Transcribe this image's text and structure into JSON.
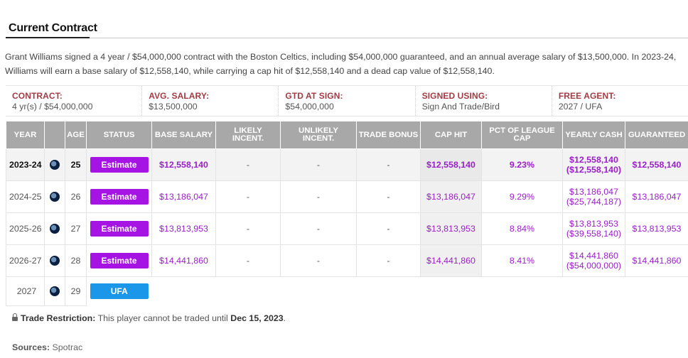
{
  "section": {
    "title": "Current Contract"
  },
  "summary": "Grant Williams signed a 4 year / $54,000,000 contract with the Boston Celtics, including $54,000,000 guaranteed, and an annual average salary of $13,500,000. In 2023-24, Williams will earn a base salary of $12,558,140, while carrying a cap hit of $12,558,140 and a dead cap value of $12,558,140.",
  "info": [
    {
      "label": "CONTRACT:",
      "value": "4 yr(s) / $54,000,000"
    },
    {
      "label": "AVG. SALARY:",
      "value": "$13,500,000"
    },
    {
      "label": "GTD AT SIGN:",
      "value": "$54,000,000"
    },
    {
      "label": "SIGNED USING:",
      "value": "Sign And Trade/Bird"
    },
    {
      "label": "FREE AGENT:",
      "value": "2027 / UFA"
    }
  ],
  "columns": [
    "YEAR",
    "",
    "AGE",
    "STATUS",
    "BASE SALARY",
    "LIKELY INCENT.",
    "UNLIKELY INCENT.",
    "TRADE BONUS",
    "CAP HIT",
    "PCT OF LEAGUE CAP",
    "YEARLY CASH",
    "GUARANTEED"
  ],
  "rows": [
    {
      "year": "2023-24",
      "team_icon": "celtics-logo-icon",
      "age": "25",
      "status": "Estimate",
      "base": "$12,558,140",
      "likely": "-",
      "unlikely": "-",
      "bonus": "-",
      "cap": "$12,558,140",
      "pct": "9.23%",
      "cash": "$12,558,140",
      "cash_cum": "($12,558,140)",
      "gtd": "$12,558,140"
    },
    {
      "year": "2024-25",
      "team_icon": "celtics-logo-icon",
      "age": "26",
      "status": "Estimate",
      "base": "$13,186,047",
      "likely": "-",
      "unlikely": "-",
      "bonus": "-",
      "cap": "$13,186,047",
      "pct": "9.29%",
      "cash": "$13,186,047",
      "cash_cum": "($25,744,187)",
      "gtd": "$13,186,047"
    },
    {
      "year": "2025-26",
      "team_icon": "celtics-logo-icon",
      "age": "27",
      "status": "Estimate",
      "base": "$13,813,953",
      "likely": "-",
      "unlikely": "-",
      "bonus": "-",
      "cap": "$13,813,953",
      "pct": "8.84%",
      "cash": "$13,813,953",
      "cash_cum": "($39,558,140)",
      "gtd": "$13,813,953"
    },
    {
      "year": "2026-27",
      "team_icon": "celtics-logo-icon",
      "age": "28",
      "status": "Estimate",
      "base": "$14,441,860",
      "likely": "-",
      "unlikely": "-",
      "bonus": "-",
      "cap": "$14,441,860",
      "pct": "8.41%",
      "cash": "$14,441,860",
      "cash_cum": "($54,000,000)",
      "gtd": "$14,441,860"
    }
  ],
  "fa_row": {
    "year": "2027",
    "team_icon": "celtics-logo-icon",
    "age": "29",
    "status": "UFA"
  },
  "restriction": {
    "label": "Trade Restriction:",
    "text": "This player cannot be traded until",
    "date": "Dec 15, 2023",
    "end": "."
  },
  "sources": {
    "label": "Sources:",
    "value": "Spotrac"
  },
  "colors": {
    "accent_label": "#a23b44",
    "estimate_badge": "#a614e3",
    "ufa_badge": "#1a97e8",
    "money": "#9a1fc9",
    "header_bg": "#a8a8a8"
  }
}
